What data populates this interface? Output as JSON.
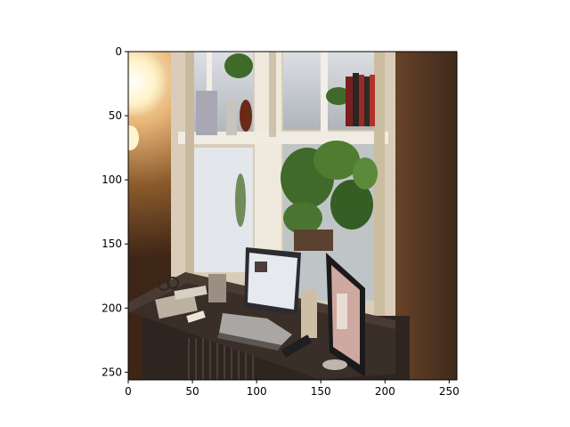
{
  "axes": {
    "x_ticks": [
      0,
      50,
      100,
      150,
      200,
      250
    ],
    "y_ticks": [
      0,
      50,
      100,
      150,
      200,
      250
    ],
    "x_range": [
      0,
      256
    ],
    "y_range": [
      0,
      256
    ],
    "y_inverted": true
  },
  "image": {
    "scene": "desk-by-window",
    "colors": {
      "wall_left": "#8a5a2c",
      "wall_right": "#5a3a22",
      "window_frame": "#e8e0d2",
      "glass_outside": "#c9cdd2",
      "plants": "#3f6a2a",
      "desk": "#3a2e28",
      "lamp_glow": "#fff2c0",
      "screen": "#e7e9f0"
    }
  }
}
